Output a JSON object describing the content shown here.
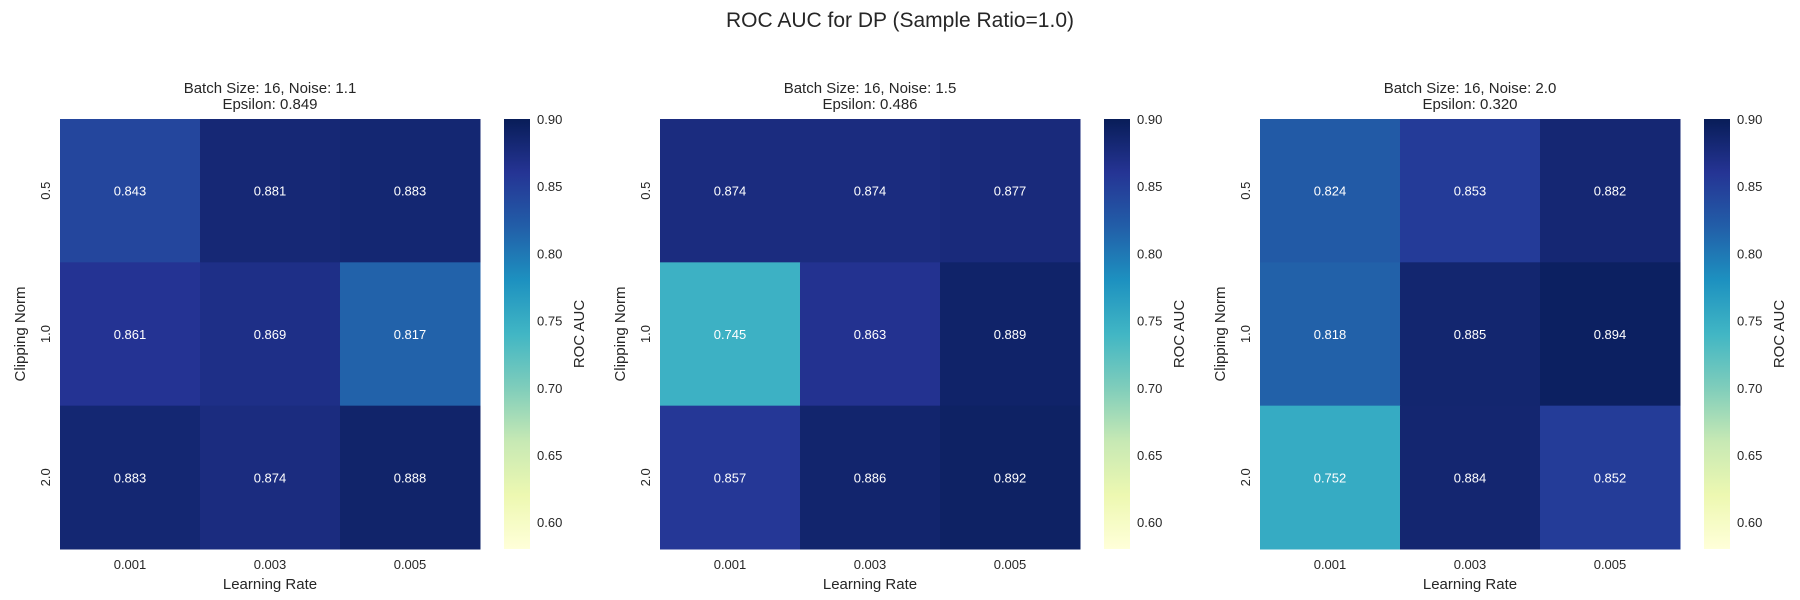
{
  "title": "ROC AUC for DP (Sample Ratio=1.0)",
  "colorbar_label": "ROC AUC",
  "colorbar_ticks": [
    "0.60",
    "0.65",
    "0.70",
    "0.75",
    "0.80",
    "0.85",
    "0.90"
  ],
  "colormap": "YlGnBu",
  "chart_data": [
    {
      "type": "heatmap",
      "title": [
        "Batch Size: 16, Noise: 1.1",
        "Epsilon: 0.849"
      ],
      "xlabel": "Learning Rate",
      "ylabel": "Clipping Norm",
      "x_categories": [
        "0.001",
        "0.003",
        "0.005"
      ],
      "y_categories": [
        "0.5",
        "1.0",
        "2.0"
      ],
      "values": [
        [
          0.843,
          0.881,
          0.883
        ],
        [
          0.861,
          0.869,
          0.817
        ],
        [
          0.883,
          0.874,
          0.888
        ]
      ],
      "value_labels": [
        [
          "0.843",
          "0.881",
          "0.883"
        ],
        [
          "0.861",
          "0.869",
          "0.817"
        ],
        [
          "0.883",
          "0.874",
          "0.888"
        ]
      ],
      "colorbar_range": [
        0.58,
        0.9
      ]
    },
    {
      "type": "heatmap",
      "title": [
        "Batch Size: 16, Noise: 1.5",
        "Epsilon: 0.486"
      ],
      "xlabel": "Learning Rate",
      "ylabel": "Clipping Norm",
      "x_categories": [
        "0.001",
        "0.003",
        "0.005"
      ],
      "y_categories": [
        "0.5",
        "1.0",
        "2.0"
      ],
      "values": [
        [
          0.874,
          0.874,
          0.877
        ],
        [
          0.745,
          0.863,
          0.889
        ],
        [
          0.857,
          0.886,
          0.892
        ]
      ],
      "value_labels": [
        [
          "0.874",
          "0.874",
          "0.877"
        ],
        [
          "0.745",
          "0.863",
          "0.889"
        ],
        [
          "0.857",
          "0.886",
          "0.892"
        ]
      ],
      "colorbar_range": [
        0.58,
        0.9
      ]
    },
    {
      "type": "heatmap",
      "title": [
        "Batch Size: 16, Noise: 2.0",
        "Epsilon: 0.320"
      ],
      "xlabel": "Learning Rate",
      "ylabel": "Clipping Norm",
      "x_categories": [
        "0.001",
        "0.003",
        "0.005"
      ],
      "y_categories": [
        "0.5",
        "1.0",
        "2.0"
      ],
      "values": [
        [
          0.824,
          0.853,
          0.882
        ],
        [
          0.818,
          0.885,
          0.894
        ],
        [
          0.752,
          0.884,
          0.852
        ]
      ],
      "value_labels": [
        [
          "0.824",
          "0.853",
          "0.882"
        ],
        [
          "0.818",
          "0.885",
          "0.894"
        ],
        [
          "0.752",
          "0.884",
          "0.852"
        ]
      ],
      "colorbar_range": [
        0.58,
        0.9
      ]
    }
  ]
}
